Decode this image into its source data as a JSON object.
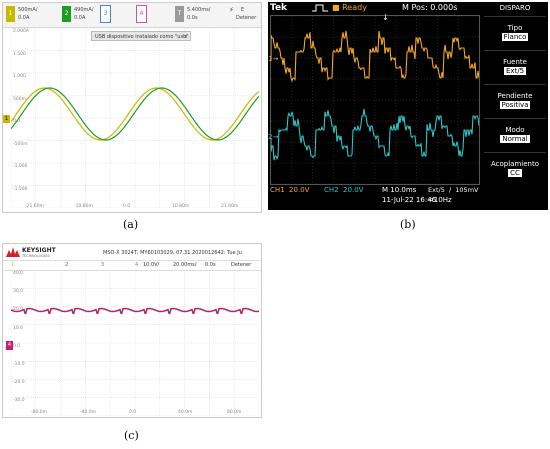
{
  "captions": {
    "a": "(a)",
    "b": "(b)",
    "c": "(c)"
  },
  "panel_a": {
    "ch1": {
      "num": "1",
      "scale": "500mA/",
      "offset": "0.0A",
      "color": "#c9b800"
    },
    "ch2": {
      "num": "2",
      "scale": "490mA/",
      "offset": "0.0A",
      "color": "#1e9c1e"
    },
    "ch3": {
      "num": "3",
      "color": "#4a7fd6"
    },
    "ch4": {
      "num": "4",
      "color": "#d64aa8"
    },
    "timebase": {
      "num": "T",
      "scale": "5.400ms/",
      "offset": "0.0s"
    },
    "trigger": {
      "icon": "trigger-icon",
      "label": "E",
      "status": "Detener"
    },
    "notification": "USB dispositivo instalado como \"usb\"",
    "notification_close": "×",
    "y_labels": [
      "2.000A",
      "1.500",
      "1.000",
      "500m",
      "0.0",
      "-500m",
      "-1.000",
      "-1.500"
    ],
    "x_labels": [
      "-21.60m",
      "-10.80m",
      "0.0",
      "10.80m",
      "21.60m"
    ],
    "ground_marker": "1"
  },
  "panel_b": {
    "brand": "Tek",
    "state": "Ready",
    "mpos": "M Pos: 0.000s",
    "menu_title": "DISPARO",
    "menu": [
      {
        "label": "Tipo",
        "value": "Flanco"
      },
      {
        "label": "Fuente",
        "value": "Ext/5"
      },
      {
        "label": "Pendiente",
        "value": "Positiva"
      },
      {
        "label": "Modo",
        "value": "Normal"
      },
      {
        "label": "Acoplamiento",
        "value": "CC"
      }
    ],
    "ch1_marker": "1",
    "ch2_marker": "2",
    "ch1_readout": "CH1  20.0V",
    "ch2_readout": "CH2  20.0V",
    "timebase": "M 10.0ms",
    "date": "11-Jul-22 16:46",
    "trigger_src": "Ext/5  ∕  105mV",
    "freq": "<10Hz",
    "ch1_color": "#f5a623",
    "ch2_color": "#2ec4c4"
  },
  "panel_c": {
    "brand": "KEYSIGHT",
    "brand_sub": "TECHNOLOGIES",
    "header": "MSO-X 3024T, MY60103029, 07.31.2020012642: Tue Ju",
    "channels": [
      "1",
      "2",
      "3",
      "4"
    ],
    "ch4_scale": "10.0V/",
    "timebase": "20.00ms/",
    "offset": "0.0s",
    "status": "Detener",
    "y_labels": [
      "40.0",
      "30.0",
      "20.0",
      "10.0",
      "0.0",
      "-10.0",
      "-20.0",
      "-30.0"
    ],
    "x_labels": [
      "-80.0m",
      "-40.0m",
      "0.0",
      "40.0m",
      "80.0m"
    ],
    "ch4_marker": "4",
    "trace_color": "#c8206e"
  }
}
